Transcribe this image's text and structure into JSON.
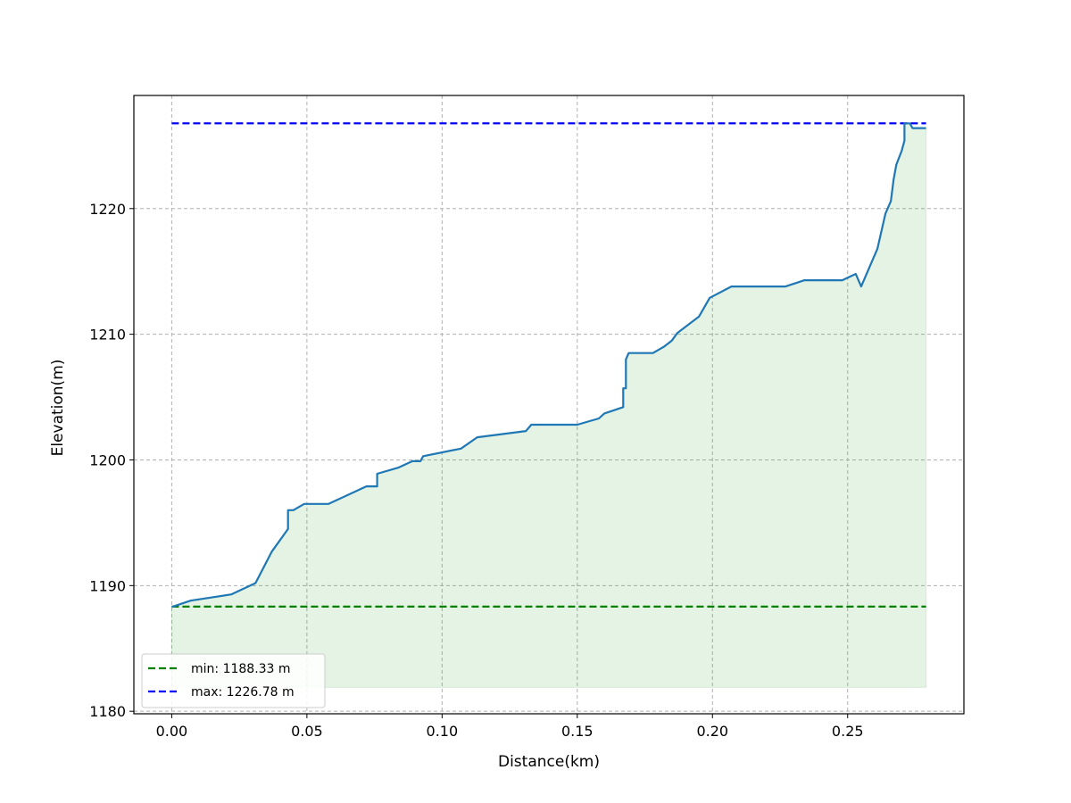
{
  "chart_data": {
    "type": "line",
    "title": "",
    "xlabel": "Distance(km)",
    "ylabel": "Elevation(m)",
    "xlim": [
      -0.014,
      0.293
    ],
    "ylim": [
      1179.8,
      1229.0
    ],
    "xticks": [
      0.0,
      0.05,
      0.1,
      0.15,
      0.2,
      0.25
    ],
    "xtick_labels": [
      "0.00",
      "0.05",
      "0.10",
      "0.15",
      "0.20",
      "0.25"
    ],
    "yticks": [
      1180,
      1190,
      1200,
      1210,
      1220
    ],
    "ytick_labels": [
      "1180",
      "1190",
      "1200",
      "1210",
      "1220"
    ],
    "grid": true,
    "legend_position": "bottom-left",
    "fill_baseline": 1181.9,
    "colors": {
      "profile": "#1f77b4",
      "fill": "#2ca02c",
      "min": "#008000",
      "max": "#0000ff",
      "grid": "#b0b0b0"
    },
    "series": [
      {
        "x": [
          0.0,
          0.007,
          0.022,
          0.031,
          0.037,
          0.043,
          0.043,
          0.045,
          0.049,
          0.058,
          0.072,
          0.076,
          0.076,
          0.084,
          0.089,
          0.092,
          0.093,
          0.107,
          0.113,
          0.131,
          0.133,
          0.15,
          0.158,
          0.16,
          0.167,
          0.167,
          0.168,
          0.168,
          0.169,
          0.178,
          0.182,
          0.185,
          0.187,
          0.195,
          0.199,
          0.207,
          0.227,
          0.234,
          0.248,
          0.253,
          0.255,
          0.261,
          0.264,
          0.266,
          0.267,
          0.268,
          0.27,
          0.271,
          0.271,
          0.273,
          0.274,
          0.279
        ],
        "values": [
          1188.3,
          1188.8,
          1189.3,
          1190.2,
          1192.7,
          1194.5,
          1196.0,
          1196.0,
          1196.5,
          1196.5,
          1197.9,
          1197.9,
          1198.9,
          1199.4,
          1199.9,
          1199.9,
          1200.3,
          1200.9,
          1201.8,
          1202.3,
          1202.8,
          1202.8,
          1203.3,
          1203.7,
          1204.2,
          1205.7,
          1205.7,
          1208.0,
          1208.5,
          1208.5,
          1209.0,
          1209.5,
          1210.1,
          1211.4,
          1212.9,
          1213.8,
          1213.8,
          1214.3,
          1214.3,
          1214.8,
          1213.8,
          1216.8,
          1219.6,
          1220.6,
          1222.3,
          1223.5,
          1224.6,
          1225.4,
          1226.78,
          1226.78,
          1226.4,
          1226.4
        ]
      },
      {
        "name": "min: 1188.33 m",
        "x": [
          0.0,
          0.279
        ],
        "values": [
          1188.33,
          1188.33
        ],
        "style": "dashed"
      },
      {
        "name": "max: 1226.78 m",
        "x": [
          0.0,
          0.279
        ],
        "values": [
          1226.78,
          1226.78
        ],
        "style": "dashed"
      }
    ]
  }
}
